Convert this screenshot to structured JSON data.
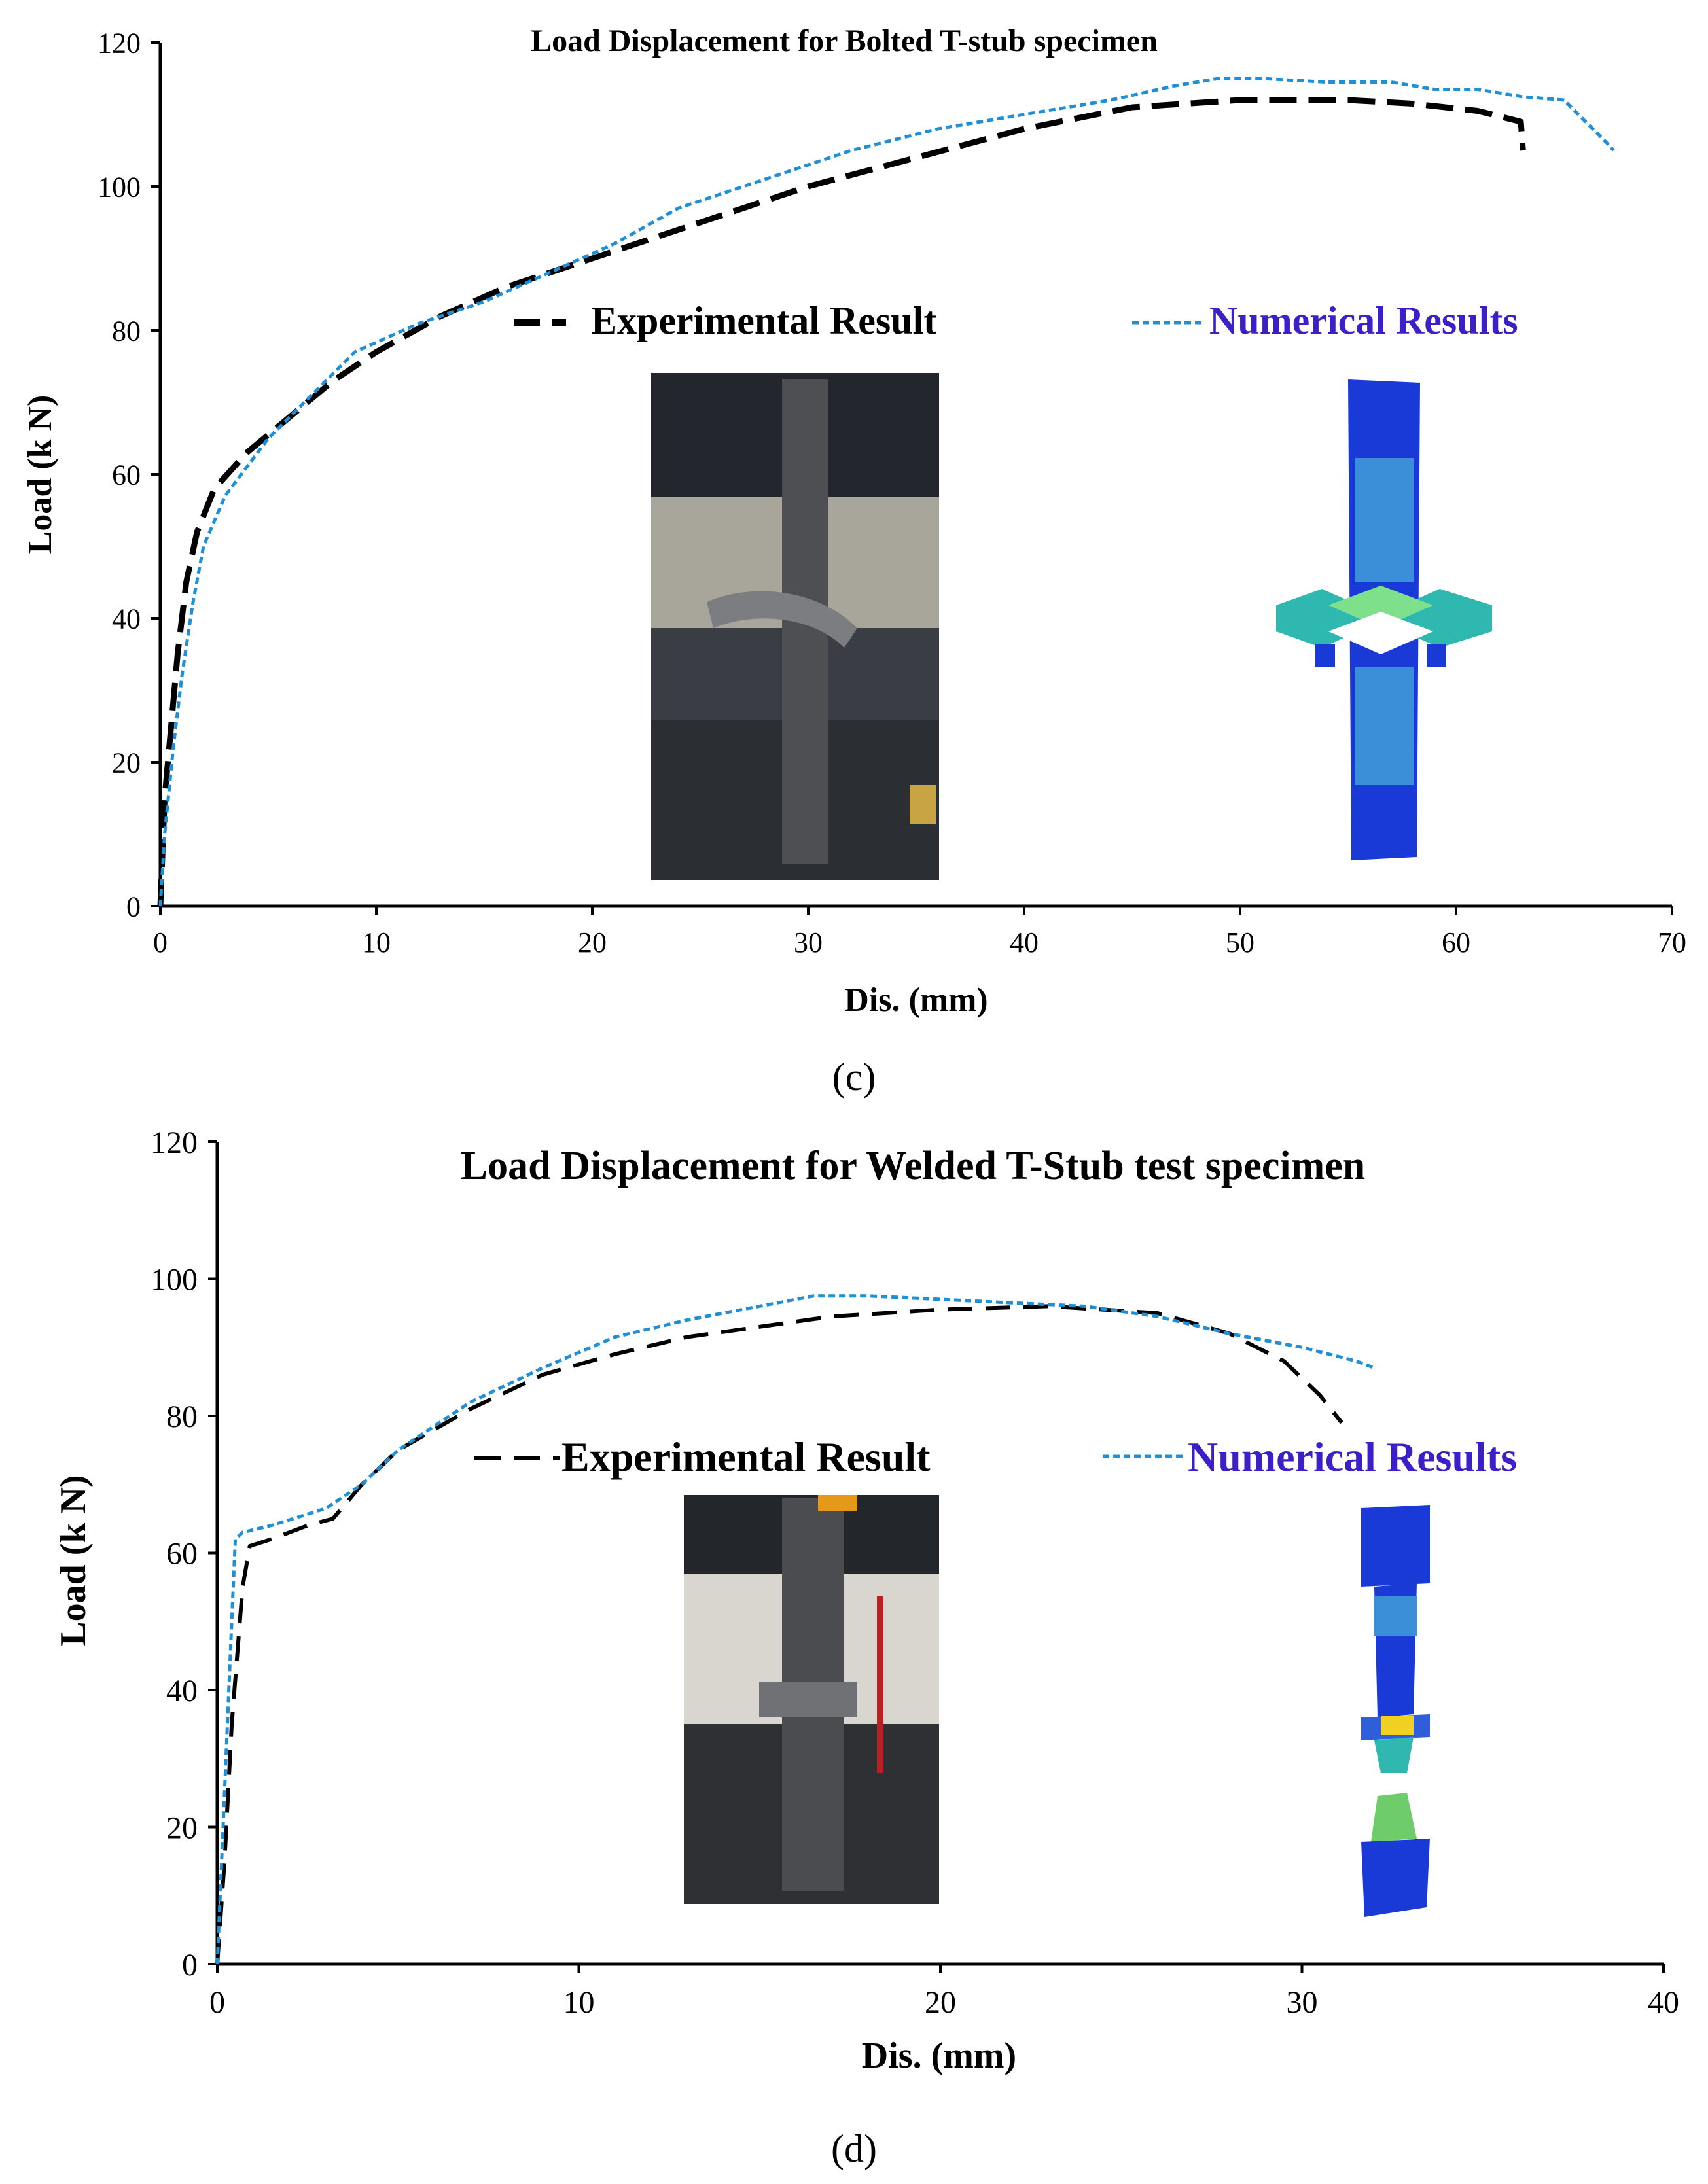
{
  "chart_data": [
    {
      "type": "line",
      "title": "Load Displacement for Bolted T-stub specimen",
      "xlabel": "Dis. (mm)",
      "ylabel": "Load (k N)",
      "xlim": [
        0,
        70
      ],
      "ylim": [
        0,
        120
      ],
      "xticks": [
        0,
        10,
        20,
        30,
        40,
        50,
        60,
        70
      ],
      "yticks": [
        0,
        20,
        40,
        60,
        80,
        100,
        120
      ],
      "legend": [
        "Experimental Result",
        "Numerical Results"
      ],
      "caption": "(c)",
      "series": [
        {
          "name": "Experimental Result",
          "color": "#000000",
          "style": "dashed",
          "points": [
            [
              0,
              0
            ],
            [
              0.2,
              15
            ],
            [
              0.5,
              25
            ],
            [
              0.8,
              35
            ],
            [
              1.2,
              45
            ],
            [
              1.7,
              52
            ],
            [
              2.5,
              58
            ],
            [
              4,
              63
            ],
            [
              6,
              68
            ],
            [
              8,
              73
            ],
            [
              10,
              77
            ],
            [
              13,
              82
            ],
            [
              16,
              86
            ],
            [
              20,
              90
            ],
            [
              25,
              95
            ],
            [
              30,
              100
            ],
            [
              35,
              104
            ],
            [
              40,
              108
            ],
            [
              45,
              111
            ],
            [
              50,
              112
            ],
            [
              55,
              112
            ],
            [
              58,
              111.5
            ],
            [
              61,
              110.5
            ],
            [
              63,
              109
            ],
            [
              63.1,
              105
            ]
          ]
        },
        {
          "name": "Numerical Results",
          "color": "#1f8fd6",
          "style": "dotted",
          "points": [
            [
              0,
              0
            ],
            [
              0.2,
              10
            ],
            [
              0.6,
              22
            ],
            [
              1,
              32
            ],
            [
              1.5,
              42
            ],
            [
              2,
              50
            ],
            [
              3,
              57
            ],
            [
              5,
              65
            ],
            [
              7,
              71
            ],
            [
              9,
              77
            ],
            [
              12,
              81
            ],
            [
              15,
              84
            ],
            [
              18,
              88
            ],
            [
              21,
              92
            ],
            [
              24,
              97
            ],
            [
              28,
              101
            ],
            [
              32,
              105
            ],
            [
              36,
              108
            ],
            [
              40,
              110
            ],
            [
              44,
              112
            ],
            [
              47,
              114
            ],
            [
              49,
              115
            ],
            [
              51,
              115
            ],
            [
              54,
              114.5
            ],
            [
              57,
              114.5
            ],
            [
              59,
              113.5
            ],
            [
              61,
              113.5
            ],
            [
              63,
              112.5
            ],
            [
              65,
              112
            ],
            [
              66,
              109
            ],
            [
              67,
              106
            ],
            [
              67.3,
              105
            ]
          ]
        }
      ]
    },
    {
      "type": "line",
      "title": "Load Displacement for Welded T-Stub test specimen",
      "xlabel": "Dis. (mm)",
      "ylabel": "Load (k N)",
      "xlim": [
        0,
        40
      ],
      "ylim": [
        0,
        120
      ],
      "xticks": [
        0,
        10,
        20,
        30,
        40
      ],
      "yticks": [
        0,
        20,
        40,
        60,
        80,
        100,
        120
      ],
      "legend": [
        "Experimental Result",
        "Numerical Results"
      ],
      "caption": "(d)",
      "series": [
        {
          "name": "Experimental Result",
          "color": "#000000",
          "style": "dashed",
          "points": [
            [
              0,
              0
            ],
            [
              0.2,
              15
            ],
            [
              0.4,
              35
            ],
            [
              0.7,
              55
            ],
            [
              0.9,
              61
            ],
            [
              1.5,
              62
            ],
            [
              2.5,
              64
            ],
            [
              3.2,
              65
            ],
            [
              4,
              70
            ],
            [
              5,
              75
            ],
            [
              7,
              81
            ],
            [
              9,
              86
            ],
            [
              11,
              89
            ],
            [
              13,
              91.5
            ],
            [
              15,
              93
            ],
            [
              17,
              94.5
            ],
            [
              20,
              95.5
            ],
            [
              23,
              96
            ],
            [
              26,
              95
            ],
            [
              28,
              92
            ],
            [
              29.5,
              88
            ],
            [
              30.5,
              83
            ],
            [
              31.1,
              79
            ]
          ]
        },
        {
          "name": "Numerical Results",
          "color": "#1f8fd6",
          "style": "dotted",
          "points": [
            [
              0,
              0
            ],
            [
              0.2,
              25
            ],
            [
              0.4,
              50
            ],
            [
              0.5,
              62
            ],
            [
              0.7,
              63
            ],
            [
              1.5,
              64
            ],
            [
              3,
              66.5
            ],
            [
              4,
              70
            ],
            [
              5,
              75
            ],
            [
              7,
              82
            ],
            [
              9,
              87
            ],
            [
              11,
              91.5
            ],
            [
              13,
              94
            ],
            [
              15,
              96
            ],
            [
              16.5,
              97.5
            ],
            [
              18,
              97.5
            ],
            [
              20,
              97
            ],
            [
              22,
              96.5
            ],
            [
              24,
              96
            ],
            [
              26,
              94.5
            ],
            [
              28,
              92
            ],
            [
              30,
              90
            ],
            [
              31.5,
              88
            ],
            [
              32,
              87
            ]
          ]
        }
      ]
    }
  ]
}
